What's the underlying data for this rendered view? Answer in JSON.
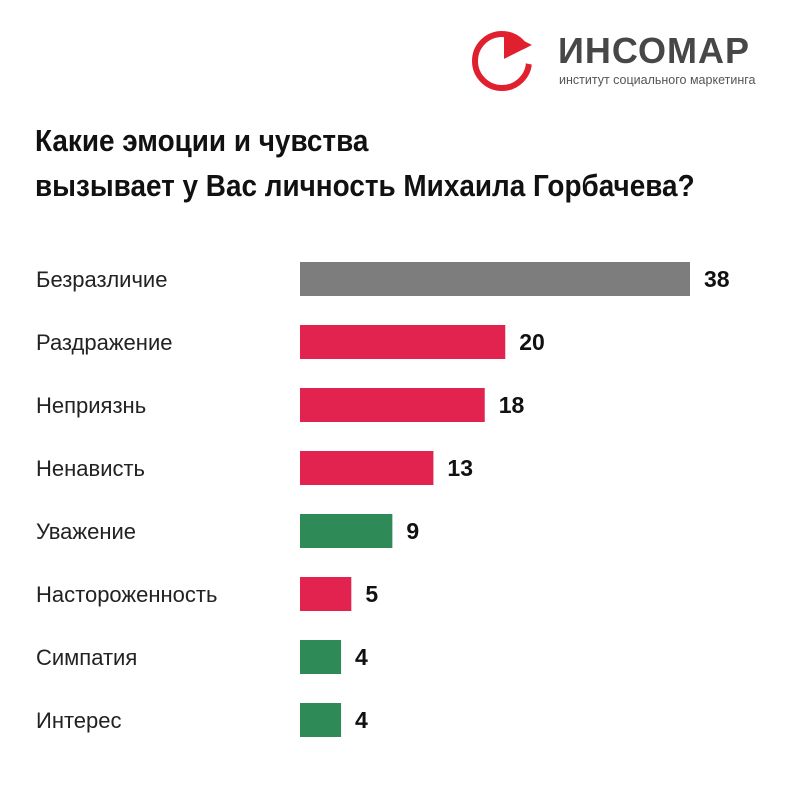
{
  "brand": {
    "name": "ИНСОМАР",
    "tagline": "институт социального маркетинга",
    "accent_color": "#e0202e",
    "text_color": "#474747"
  },
  "title_lines": [
    "Какие эмоции и чувства",
    "вызывает у Вас личность Михаила Горбачева?"
  ],
  "chart_data": {
    "type": "bar",
    "orientation": "horizontal",
    "title": "Какие эмоции и чувства вызывает у Вас личность Михаила Горбачева?",
    "categories": [
      "Безразличие",
      "Раздражение",
      "Неприязнь",
      "Ненависть",
      "Уважение",
      "Настороженность",
      "Симпатия",
      "Интерес"
    ],
    "values": [
      38,
      20,
      18,
      13,
      9,
      5,
      4,
      4
    ],
    "colors": [
      "#7d7d7d",
      "#e3234f",
      "#e3234f",
      "#e3234f",
      "#2e8b57",
      "#e3234f",
      "#2e8b57",
      "#2e8b57"
    ],
    "xlim": [
      0,
      38
    ],
    "grid": false,
    "legend": "none",
    "data_labels": true
  }
}
